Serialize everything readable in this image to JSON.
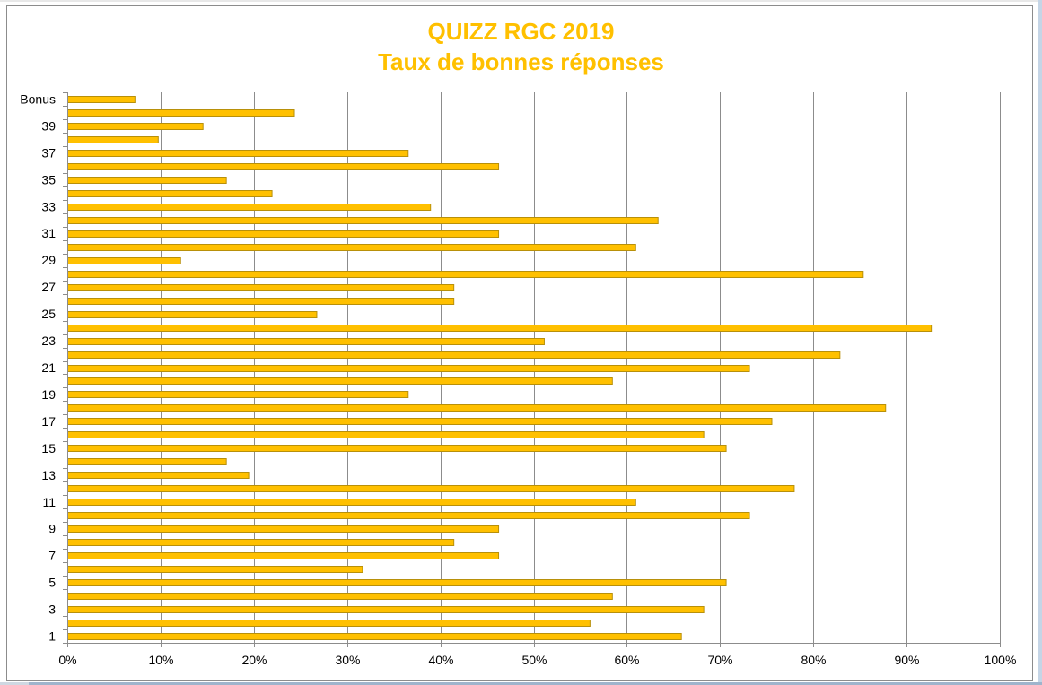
{
  "chart_data": {
    "type": "bar",
    "orientation": "horizontal",
    "title": "QUIZZ RGC 2019",
    "subtitle": "Taux de bonnes réponses",
    "xlabel": "",
    "ylabel": "",
    "xlim": [
      0,
      100
    ],
    "x_unit": "%",
    "x_ticks": [
      0,
      10,
      20,
      30,
      40,
      50,
      60,
      70,
      80,
      90,
      100
    ],
    "x_tick_labels": [
      "0%",
      "10%",
      "20%",
      "30%",
      "40%",
      "50%",
      "60%",
      "70%",
      "80%",
      "90%",
      "100%"
    ],
    "grid": "vertical",
    "legend": "none",
    "categories": [
      "1",
      "2",
      "3",
      "4",
      "5",
      "6",
      "7",
      "8",
      "9",
      "10",
      "11",
      "12",
      "13",
      "14",
      "15",
      "16",
      "17",
      "18",
      "19",
      "20",
      "21",
      "22",
      "23",
      "24",
      "25",
      "26",
      "27",
      "28",
      "29",
      "30",
      "31",
      "32",
      "33",
      "34",
      "35",
      "36",
      "37",
      "38",
      "39",
      "40",
      "Bonus"
    ],
    "y_tick_labels_shown": [
      "1",
      "3",
      "5",
      "7",
      "9",
      "11",
      "13",
      "15",
      "17",
      "19",
      "21",
      "23",
      "25",
      "27",
      "29",
      "31",
      "33",
      "35",
      "37",
      "39",
      "Bonus"
    ],
    "values": [
      65.9,
      56.1,
      68.3,
      58.5,
      70.7,
      31.7,
      46.3,
      41.5,
      46.3,
      73.2,
      61.0,
      78.0,
      19.5,
      17.1,
      70.7,
      68.3,
      75.6,
      87.8,
      36.6,
      58.5,
      73.2,
      82.9,
      51.2,
      92.7,
      26.8,
      41.5,
      41.5,
      85.4,
      12.2,
      61.0,
      46.3,
      63.4,
      39.0,
      22.0,
      17.1,
      46.3,
      36.6,
      9.8,
      14.6,
      24.4,
      7.3
    ],
    "colors": {
      "bar_fill": "#ffc000",
      "bar_stroke": "#b8900a",
      "title": "#ffc000",
      "grid": "#8c8c8c"
    }
  }
}
